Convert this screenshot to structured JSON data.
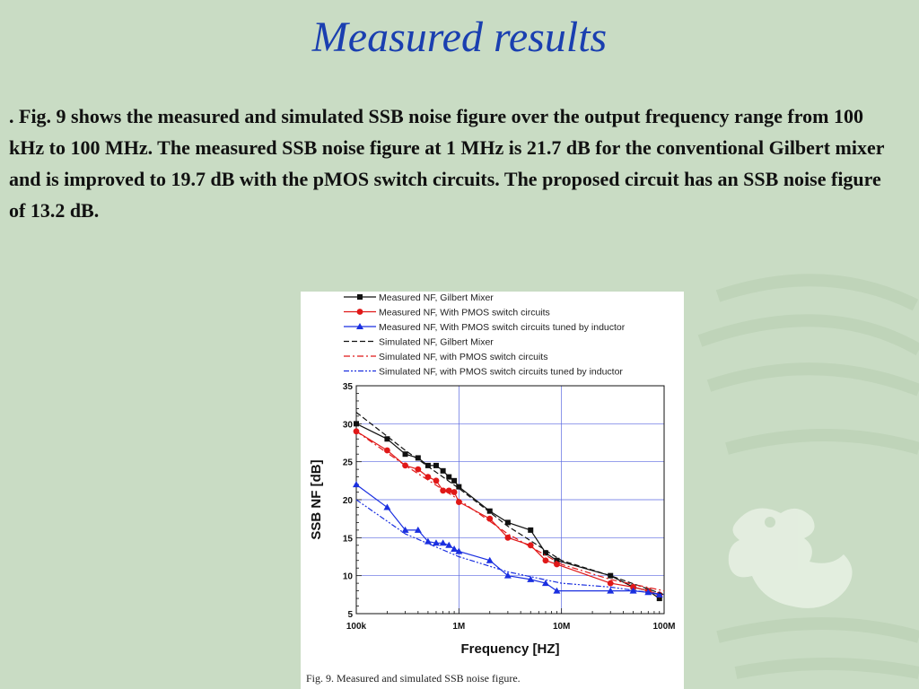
{
  "slide": {
    "title": "Measured results",
    "paragraph_bullet": ".",
    "paragraph": "Fig. 9 shows the measured and simulated SSB noise figure over the output frequency range from 100 kHz to 100 MHz. The measured SSB noise figure at 1 MHz is 21.7 dB for the conventional Gilbert mixer and is improved to 19.7 dB with the pMOS switch circuits. The proposed circuit has an SSB noise figure of 13.2 dB.",
    "caption": "Fig. 9.   Measured and simulated SSB noise figure."
  },
  "chart_data": {
    "type": "line",
    "xscale": "log",
    "xlabel": "Frequency [HZ]",
    "ylabel": "SSB NF [dB]",
    "xlim": [
      100000,
      100000000
    ],
    "ylim": [
      5,
      35
    ],
    "xticks": [
      "100k",
      "1M",
      "10M",
      "100M"
    ],
    "yticks": [
      "5",
      "10",
      "15",
      "20",
      "25",
      "30",
      "35"
    ],
    "grid": true,
    "legend_position": "top",
    "colors": {
      "black": "#111111",
      "red": "#e01818",
      "blue": "#1a2fe0"
    },
    "series": [
      {
        "name": "Measured NF, Gilbert Mixer",
        "style": "solid",
        "marker": "square",
        "color": "#111111",
        "x": [
          100000,
          200000,
          300000,
          400000,
          500000,
          600000,
          700000,
          800000,
          900000,
          1000000,
          2000000,
          3000000,
          5000000,
          7000000,
          9000000,
          30000000,
          50000000,
          70000000,
          90000000
        ],
        "y": [
          30,
          28,
          26,
          25.5,
          24.5,
          24.5,
          23.8,
          23,
          22.5,
          21.7,
          18.5,
          17,
          16,
          13,
          12,
          10,
          8.5,
          8,
          7
        ]
      },
      {
        "name": "Measured NF, With PMOS switch circuits",
        "style": "solid",
        "marker": "circle",
        "color": "#e01818",
        "x": [
          100000,
          200000,
          300000,
          400000,
          500000,
          600000,
          700000,
          800000,
          900000,
          1000000,
          2000000,
          3000000,
          5000000,
          7000000,
          9000000,
          30000000,
          50000000,
          70000000,
          90000000
        ],
        "y": [
          29,
          26.5,
          24.5,
          24,
          23,
          22.5,
          21.2,
          21.2,
          21,
          19.7,
          17.5,
          15,
          14,
          12,
          11.5,
          9,
          8.5,
          8,
          7.5
        ]
      },
      {
        "name": "Measured NF, With PMOS switch circuits tuned by inductor",
        "style": "solid",
        "marker": "triangle",
        "color": "#1a2fe0",
        "x": [
          100000,
          200000,
          300000,
          400000,
          500000,
          600000,
          700000,
          800000,
          900000,
          1000000,
          2000000,
          3000000,
          5000000,
          7000000,
          9000000,
          30000000,
          50000000,
          70000000,
          90000000
        ],
        "y": [
          22,
          19,
          16,
          16,
          14.5,
          14.3,
          14.3,
          14,
          13.5,
          13.2,
          12,
          10,
          9.5,
          9,
          8,
          8,
          8,
          7.8,
          7.5
        ]
      },
      {
        "name": "Simulated NF, Gilbert Mixer",
        "style": "dashed",
        "marker": "none",
        "color": "#111111",
        "x": [
          100000,
          300000,
          1000000,
          3000000,
          10000000,
          30000000,
          100000000
        ],
        "y": [
          31.5,
          26.5,
          21.5,
          16.5,
          12,
          10,
          7.5
        ]
      },
      {
        "name": "Simulated NF, with PMOS switch circuits",
        "style": "dashdot",
        "marker": "none",
        "color": "#e01818",
        "x": [
          100000,
          300000,
          1000000,
          3000000,
          10000000,
          30000000,
          100000000
        ],
        "y": [
          29,
          24.5,
          20,
          15.5,
          11.5,
          9.5,
          8
        ]
      },
      {
        "name": "Simulated NF, with PMOS switch circuits tuned by inductor",
        "style": "dashdotdot",
        "marker": "none",
        "color": "#1a2fe0",
        "x": [
          100000,
          300000,
          1000000,
          3000000,
          10000000,
          30000000,
          100000000
        ],
        "y": [
          20,
          15.5,
          12.5,
          10.5,
          9,
          8.5,
          7.5
        ]
      }
    ]
  }
}
